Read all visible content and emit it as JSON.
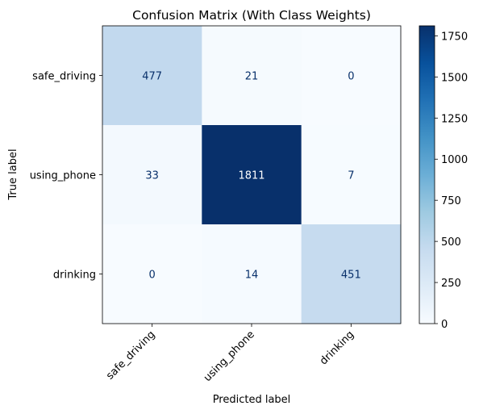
{
  "chart_data": {
    "type": "heatmap",
    "title": "Confusion Matrix (With Class Weights)",
    "xlabel": "Predicted label",
    "ylabel": "True label",
    "x_categories": [
      "safe_driving",
      "using_phone",
      "drinking"
    ],
    "y_categories": [
      "safe_driving",
      "using_phone",
      "drinking"
    ],
    "values": [
      [
        477,
        21,
        0
      ],
      [
        33,
        1811,
        7
      ],
      [
        0,
        14,
        451
      ]
    ],
    "colormap": "Blues",
    "colorbar": {
      "min": 0,
      "max": 1811,
      "ticks": [
        0,
        250,
        500,
        750,
        1000,
        1250,
        1500,
        1750
      ]
    },
    "text_colors": {
      "dark": "#08306b",
      "light": "#ffffff"
    }
  }
}
